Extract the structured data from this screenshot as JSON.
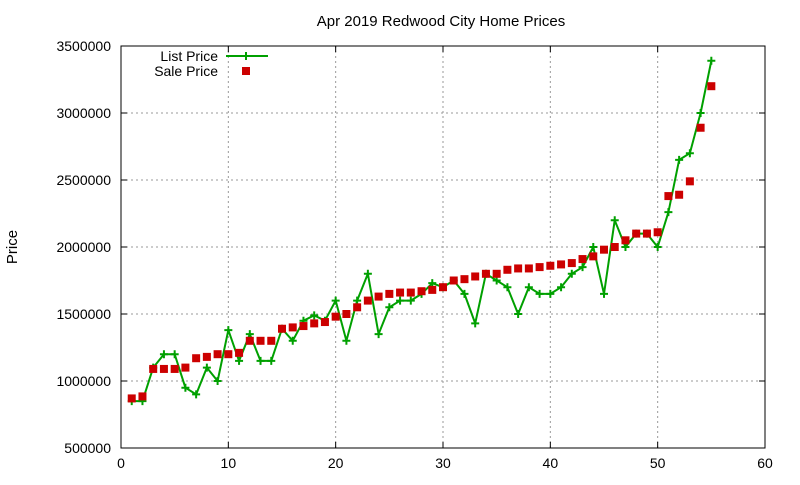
{
  "chart_data": {
    "type": "line",
    "title": "Apr 2019 Redwood City Home Prices",
    "xlabel": "",
    "ylabel": "Price",
    "xlim": [
      0,
      60
    ],
    "ylim": [
      500000,
      3500000
    ],
    "xticks": [
      0,
      10,
      20,
      30,
      40,
      50,
      60
    ],
    "yticks": [
      500000,
      1000000,
      1500000,
      2000000,
      2500000,
      3000000,
      3500000
    ],
    "grid": true,
    "legend_position": "top-left",
    "series": [
      {
        "name": "List Price",
        "style": "line-with-plus-markers",
        "color": "#00a000",
        "x": [
          1,
          2,
          3,
          4,
          5,
          6,
          7,
          8,
          9,
          10,
          11,
          12,
          13,
          14,
          15,
          16,
          17,
          18,
          19,
          20,
          21,
          22,
          23,
          24,
          25,
          26,
          27,
          28,
          29,
          30,
          31,
          32,
          33,
          34,
          35,
          36,
          37,
          38,
          39,
          40,
          41,
          42,
          43,
          44,
          45,
          46,
          47,
          48,
          49,
          50,
          51,
          52,
          53,
          54,
          55
        ],
        "values": [
          850000,
          850000,
          1100000,
          1200000,
          1200000,
          950000,
          900000,
          1100000,
          1000000,
          1380000,
          1150000,
          1350000,
          1150000,
          1150000,
          1390000,
          1300000,
          1450000,
          1490000,
          1450000,
          1600000,
          1300000,
          1600000,
          1800000,
          1350000,
          1550000,
          1600000,
          1600000,
          1650000,
          1730000,
          1700000,
          1750000,
          1650000,
          1430000,
          1800000,
          1750000,
          1700000,
          1500000,
          1700000,
          1650000,
          1650000,
          1700000,
          1800000,
          1850000,
          2000000,
          1650000,
          2200000,
          2000000,
          2100000,
          2100000,
          2000000,
          2260000,
          2650000,
          2700000,
          3000000,
          3390000
        ]
      },
      {
        "name": "Sale Price",
        "style": "square-markers",
        "color": "#cc0000",
        "x": [
          1,
          2,
          3,
          4,
          5,
          6,
          7,
          8,
          9,
          10,
          11,
          12,
          13,
          14,
          15,
          16,
          17,
          18,
          19,
          20,
          21,
          22,
          23,
          24,
          25,
          26,
          27,
          28,
          29,
          30,
          31,
          32,
          33,
          34,
          35,
          36,
          37,
          38,
          39,
          40,
          41,
          42,
          43,
          44,
          45,
          46,
          47,
          48,
          49,
          50,
          51,
          52,
          53,
          54,
          55
        ],
        "values": [
          870000,
          885000,
          1090000,
          1090000,
          1090000,
          1100000,
          1170000,
          1180000,
          1200000,
          1200000,
          1210000,
          1300000,
          1300000,
          1300000,
          1390000,
          1400000,
          1410000,
          1430000,
          1440000,
          1480000,
          1500000,
          1550000,
          1600000,
          1630000,
          1650000,
          1660000,
          1660000,
          1670000,
          1680000,
          1700000,
          1750000,
          1760000,
          1780000,
          1800000,
          1800000,
          1830000,
          1840000,
          1840000,
          1850000,
          1860000,
          1870000,
          1880000,
          1910000,
          1930000,
          1980000,
          2000000,
          2050000,
          2100000,
          2100000,
          2110000,
          2380000,
          2390000,
          2490000,
          2890000,
          3200000
        ]
      }
    ]
  }
}
